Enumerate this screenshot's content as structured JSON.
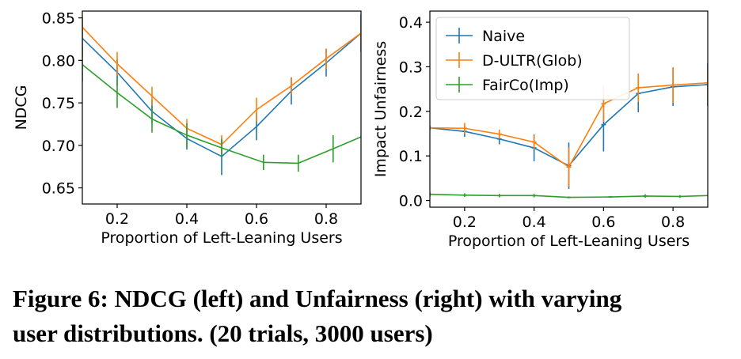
{
  "colors": {
    "naive": "#1f77b4",
    "dultr": "#ff7f0e",
    "fairco": "#2ca02c"
  },
  "caption": {
    "line1": "Figure 6: NDCG (left) and Unfairness (right) with varying",
    "line2": "user distributions. (20 trials, 3000 users)"
  },
  "chart_data": [
    {
      "type": "line",
      "panel": "left",
      "xlabel": "Proportion of Left-Leaning Users",
      "ylabel": "NDCG",
      "xlim": [
        0.1,
        0.9
      ],
      "ylim": [
        0.631,
        0.858
      ],
      "xticks": [
        0.2,
        0.4,
        0.6,
        0.8
      ],
      "xtick_labels": [
        "0.2",
        "0.4",
        "0.6",
        "0.8"
      ],
      "yticks": [
        0.65,
        0.7,
        0.75,
        0.8,
        0.85
      ],
      "ytick_labels": [
        "0.65",
        "0.70",
        "0.75",
        "0.80",
        "0.85"
      ],
      "grid": false,
      "legend": false,
      "series": [
        {
          "name": "Naive",
          "color": "#1f77b4",
          "x": [
            0.1,
            0.2,
            0.3,
            0.4,
            0.5,
            0.6,
            0.7,
            0.8,
            0.9
          ],
          "y": [
            0.826,
            0.786,
            0.74,
            0.708,
            0.687,
            0.722,
            0.764,
            0.797,
            0.832
          ],
          "err": [
            0.022,
            0.016,
            0.014,
            0.013,
            0.022,
            0.016,
            0.016,
            0.016,
            0.022
          ]
        },
        {
          "name": "D-ULTR(Glob)",
          "color": "#ff7f0e",
          "x": [
            0.1,
            0.2,
            0.3,
            0.4,
            0.5,
            0.6,
            0.7,
            0.8,
            0.9
          ],
          "y": [
            0.839,
            0.796,
            0.758,
            0.72,
            0.701,
            0.742,
            0.77,
            0.802,
            0.832
          ],
          "err": [
            0.012,
            0.014,
            0.011,
            0.011,
            0.011,
            0.014,
            0.01,
            0.012,
            0.01
          ]
        },
        {
          "name": "FairCo(Imp)",
          "color": "#2ca02c",
          "x": [
            0.1,
            0.2,
            0.3,
            0.4,
            0.5,
            0.62,
            0.72,
            0.82,
            0.9
          ],
          "y": [
            0.795,
            0.762,
            0.731,
            0.712,
            0.697,
            0.68,
            0.679,
            0.696,
            0.71
          ],
          "err": [
            0.02,
            0.018,
            0.016,
            0.014,
            0.01,
            0.009,
            0.01,
            0.016,
            0.0
          ]
        }
      ]
    },
    {
      "type": "line",
      "panel": "right",
      "xlabel": "Proportion of Left-Leaning Users",
      "ylabel": "Impact Unfairness",
      "xlim": [
        0.1,
        0.9
      ],
      "ylim": [
        -0.015,
        0.425
      ],
      "xticks": [
        0.2,
        0.4,
        0.6,
        0.8
      ],
      "xtick_labels": [
        "0.2",
        "0.4",
        "0.6",
        "0.8"
      ],
      "yticks": [
        0.0,
        0.1,
        0.2,
        0.3,
        0.4
      ],
      "ytick_labels": [
        "0.0",
        "0.1",
        "0.2",
        "0.3",
        "0.4"
      ],
      "grid": false,
      "legend": "top-left",
      "legend_entries": [
        "Naive",
        "D-ULTR(Glob)",
        "FairCo(Imp)"
      ],
      "series": [
        {
          "name": "Naive",
          "color": "#1f77b4",
          "x": [
            0.1,
            0.2,
            0.3,
            0.4,
            0.5,
            0.6,
            0.7,
            0.8,
            0.9
          ],
          "y": [
            0.163,
            0.155,
            0.138,
            0.118,
            0.078,
            0.17,
            0.24,
            0.255,
            0.26
          ],
          "err": [
            0.005,
            0.012,
            0.012,
            0.03,
            0.052,
            0.06,
            0.042,
            0.043,
            0.048
          ]
        },
        {
          "name": "D-ULTR(Glob)",
          "color": "#ff7f0e",
          "x": [
            0.1,
            0.2,
            0.3,
            0.4,
            0.5,
            0.6,
            0.7,
            0.8,
            0.9
          ],
          "y": [
            0.163,
            0.162,
            0.149,
            0.131,
            0.075,
            0.217,
            0.253,
            0.259,
            0.264
          ],
          "err": [
            0.004,
            0.012,
            0.01,
            0.015,
            0.044,
            0.04,
            0.032,
            0.04,
            0.03
          ]
        },
        {
          "name": "FairCo(Imp)",
          "color": "#2ca02c",
          "x": [
            0.1,
            0.2,
            0.3,
            0.4,
            0.5,
            0.62,
            0.72,
            0.82,
            0.9
          ],
          "y": [
            0.014,
            0.012,
            0.011,
            0.011,
            0.007,
            0.008,
            0.01,
            0.009,
            0.011
          ],
          "err": [
            0.005,
            0.004,
            0.004,
            0.004,
            0.002,
            0.002,
            0.004,
            0.003,
            0.0
          ]
        }
      ]
    }
  ]
}
